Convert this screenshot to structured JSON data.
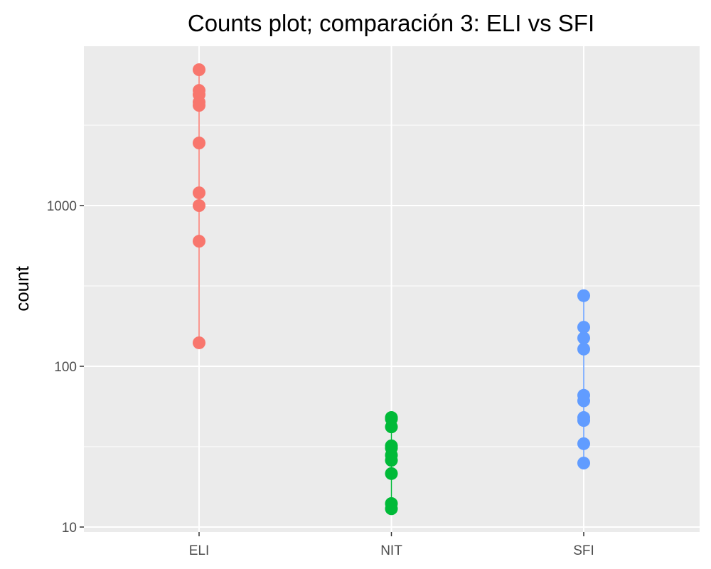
{
  "chart_data": {
    "type": "scatter",
    "title": "Counts plot; comparación 3: ELI vs SFI",
    "xlabel": "",
    "ylabel": "count",
    "y_scale": "log10",
    "ylim": [
      10,
      9000
    ],
    "y_ticks": [
      10,
      100,
      1000
    ],
    "y_tick_labels": [
      "10",
      "100",
      "1000"
    ],
    "categories": [
      "ELI",
      "NIT",
      "SFI"
    ],
    "grid": true,
    "legend": "none",
    "series": [
      {
        "category": "ELI",
        "color": "#F8766D",
        "values": [
          140,
          600,
          1000,
          1200,
          2450,
          4200,
          4400,
          4900,
          5200,
          7000
        ]
      },
      {
        "category": "NIT",
        "color": "#00BA38",
        "values": [
          13,
          14,
          21.5,
          26,
          28,
          31,
          32,
          42,
          47,
          48
        ]
      },
      {
        "category": "SFI",
        "color": "#619CFF",
        "values": [
          25,
          33,
          46,
          48,
          61,
          66,
          128,
          150,
          175,
          275
        ]
      }
    ]
  }
}
